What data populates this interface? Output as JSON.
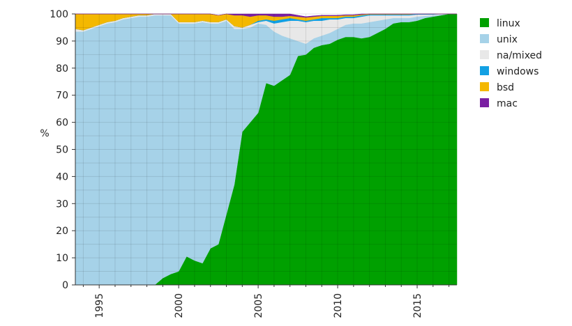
{
  "chart_data": {
    "type": "area",
    "stacked": true,
    "title": "",
    "xlabel": "",
    "ylabel": "%",
    "xlim": [
      1993.5,
      2017.5
    ],
    "ylim": [
      0,
      100
    ],
    "x_ticks": [
      1995,
      2000,
      2005,
      2010,
      2015
    ],
    "x_tick_labels": [
      "1995",
      "2000",
      "2005",
      "2010",
      "2015"
    ],
    "y_ticks": [
      0,
      10,
      20,
      30,
      40,
      50,
      60,
      70,
      80,
      90,
      100
    ],
    "y_tick_labels": [
      "0",
      "10",
      "20",
      "30",
      "40",
      "50",
      "60",
      "70",
      "80",
      "90",
      "100"
    ],
    "grid": true,
    "legend_position": "right",
    "x": [
      1993.5,
      1994,
      1994.5,
      1995,
      1995.5,
      1996,
      1996.5,
      1997,
      1997.5,
      1998,
      1998.5,
      1999,
      1999.5,
      2000,
      2000.5,
      2001,
      2001.5,
      2002,
      2002.5,
      2003,
      2003.5,
      2004,
      2004.5,
      2005,
      2005.5,
      2006,
      2006.5,
      2007,
      2007.5,
      2008,
      2008.5,
      2009,
      2009.5,
      2010,
      2010.5,
      2011,
      2011.5,
      2012,
      2012.5,
      2013,
      2013.5,
      2014,
      2014.5,
      2015,
      2015.5,
      2016,
      2016.5,
      2017,
      2017.5
    ],
    "series": [
      {
        "name": "linux",
        "color": "#00a000",
        "values": [
          0,
          0,
          0,
          0,
          0,
          0,
          0,
          0,
          0,
          0,
          0,
          2.5,
          4,
          5,
          10.5,
          9,
          8,
          13.5,
          15,
          26,
          37,
          56.5,
          60,
          63.5,
          74.5,
          73.5,
          75.5,
          77.5,
          84.5,
          85,
          87.5,
          88.5,
          89,
          90.5,
          91.5,
          91.5,
          91,
          91.5,
          93,
          94.5,
          96.5,
          97,
          97,
          97.5,
          98.5,
          99,
          99.5,
          100,
          100
        ]
      },
      {
        "name": "unix",
        "color": "#a6d2e8",
        "values": [
          93.5,
          93.5,
          94.5,
          95.5,
          96.5,
          97,
          98,
          98.5,
          99,
          99,
          99.5,
          97,
          95.5,
          91.5,
          86,
          87.5,
          89,
          83,
          81.5,
          71.5,
          57.5,
          38,
          35,
          33,
          21.5,
          20,
          16.5,
          13.5,
          5.5,
          4,
          3.5,
          3.5,
          4,
          4,
          4.5,
          5,
          5.5,
          5.5,
          4.5,
          3.5,
          2,
          1.5,
          1.5,
          1.5,
          0.8,
          0.5,
          0.3,
          0,
          0
        ]
      },
      {
        "name": "na/mixed",
        "color": "#e8e8e8",
        "values": [
          1,
          0.5,
          0.5,
          0.5,
          0.5,
          0.5,
          0.5,
          0.5,
          0.5,
          0.5,
          0.5,
          0.5,
          0.5,
          0.5,
          0.5,
          0.5,
          0.5,
          0.5,
          0.5,
          0.5,
          1,
          0.5,
          1,
          0.5,
          1.5,
          3,
          5,
          6.5,
          7.5,
          8,
          6.5,
          5.5,
          5,
          3.5,
          2.5,
          2,
          2.5,
          2.5,
          2,
          1.5,
          1,
          1,
          1,
          0.8,
          0.5,
          0.3,
          0.2,
          0,
          0
        ]
      },
      {
        "name": "windows",
        "color": "#12a0e3",
        "values": [
          0,
          0,
          0,
          0,
          0,
          0,
          0,
          0,
          0,
          0,
          0,
          0,
          0,
          0,
          0,
          0,
          0,
          0,
          0,
          0,
          0,
          0,
          0,
          0.5,
          0.5,
          1,
          1,
          1,
          0.5,
          0.5,
          0.5,
          1,
          0.5,
          0.5,
          0.5,
          0.5,
          0.5,
          0.3,
          0.3,
          0.3,
          0.3,
          0.3,
          0.3,
          0.2,
          0.2,
          0.2,
          0,
          0,
          0
        ]
      },
      {
        "name": "bsd",
        "color": "#f4b800",
        "values": [
          5.5,
          6,
          5,
          4,
          3,
          2.5,
          1.5,
          1,
          0.5,
          0.5,
          0,
          0,
          0,
          3,
          3,
          3,
          2.5,
          3,
          2.5,
          2,
          4,
          4.5,
          3,
          2,
          1.5,
          1.5,
          1,
          0.8,
          1,
          1.2,
          1,
          0.8,
          0.8,
          0.8,
          0.5,
          0.5,
          0.3,
          0.2,
          0.2,
          0.2,
          0.2,
          0.2,
          0.2,
          0,
          0,
          0,
          0,
          0,
          0
        ]
      },
      {
        "name": "mac",
        "color": "#7a1fa2",
        "values": [
          0,
          0,
          0,
          0,
          0,
          0,
          0,
          0,
          0,
          0,
          0,
          0,
          0,
          0,
          0,
          0,
          0,
          0,
          0,
          0,
          0.5,
          0.5,
          1,
          0.5,
          0.5,
          1,
          1,
          0.7,
          0.5,
          0.3,
          0.3,
          0.2,
          0.2,
          0.2,
          0.2,
          0.2,
          0.2,
          0,
          0,
          0,
          0,
          0,
          0,
          0,
          0,
          0,
          0,
          0,
          0
        ]
      }
    ]
  }
}
